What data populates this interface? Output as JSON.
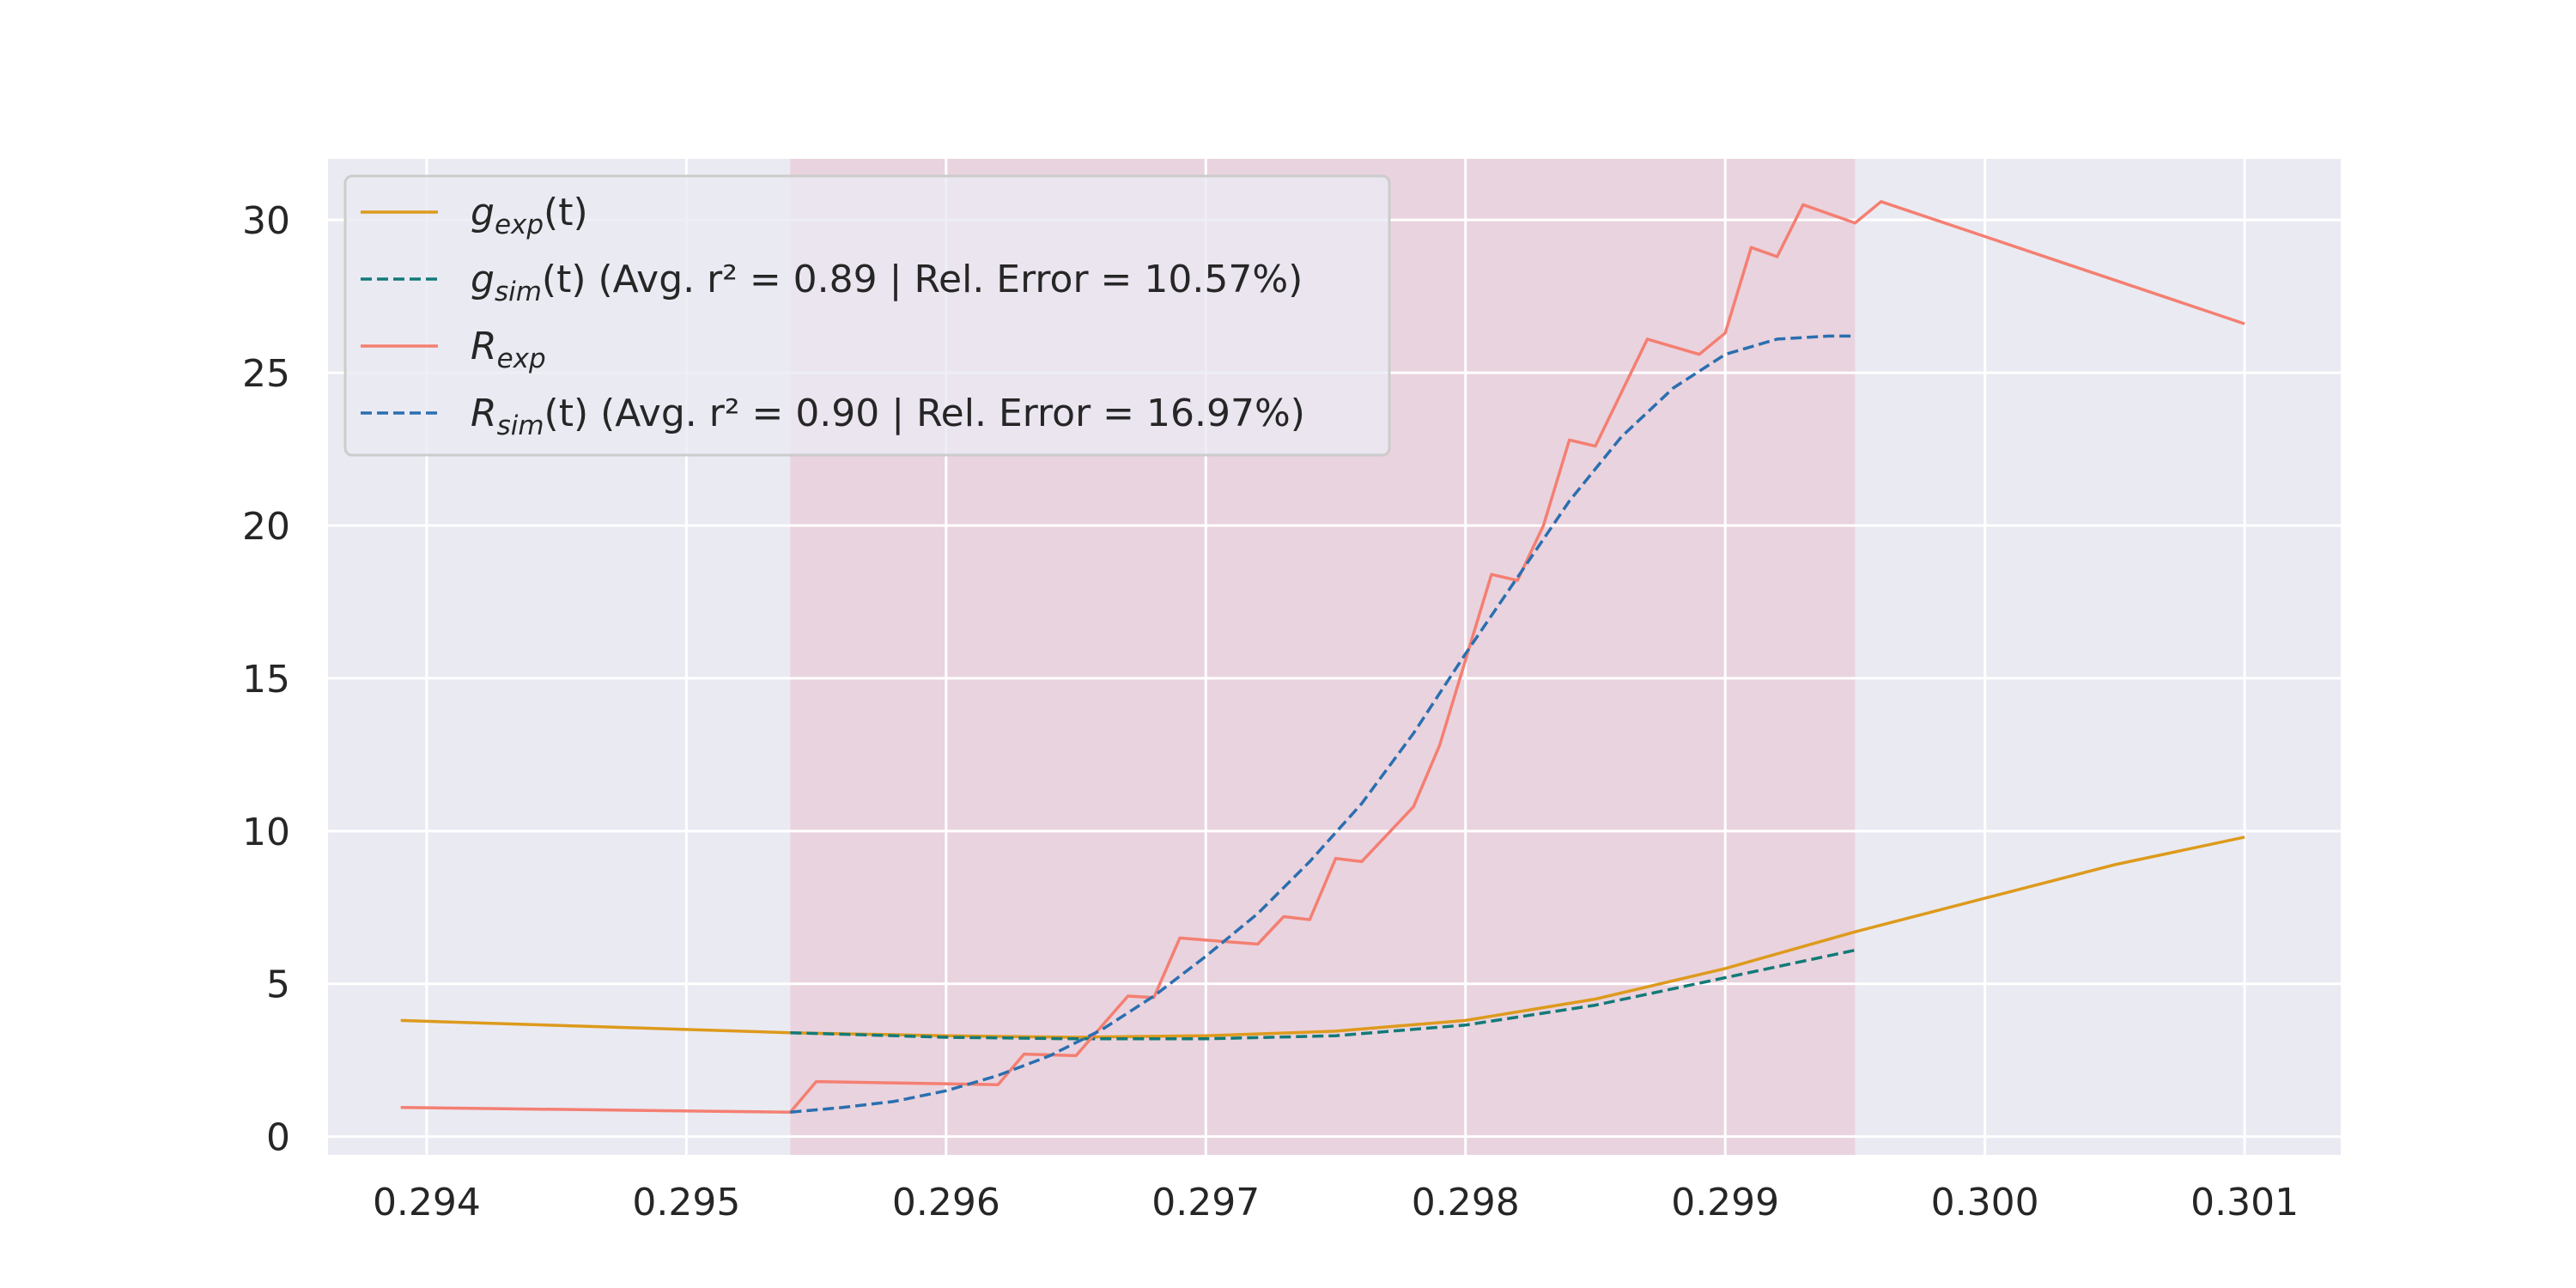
{
  "chart_data": {
    "type": "line",
    "title": "",
    "xlabel": "",
    "ylabel": "",
    "xlim": [
      0.29362,
      0.30137
    ],
    "ylim": [
      -0.6,
      32
    ],
    "grid": true,
    "background": "#eaeaf2",
    "legend_position": "top-left",
    "x_ticks": [
      0.294,
      0.295,
      0.296,
      0.297,
      0.298,
      0.299,
      0.3,
      0.301
    ],
    "x_tick_labels": [
      "0.294",
      "0.295",
      "0.296",
      "0.297",
      "0.298",
      "0.299",
      "0.300",
      "0.301"
    ],
    "y_ticks": [
      0,
      5,
      10,
      15,
      20,
      25,
      30
    ],
    "y_tick_labels": [
      "0",
      "5",
      "10",
      "15",
      "20",
      "25",
      "30"
    ],
    "shaded_region": {
      "x_start": 0.2954,
      "x_end": 0.2995,
      "color": "#e8a0b0"
    },
    "series": [
      {
        "legend_base": "g",
        "legend_sub": "exp",
        "legend_suffix": "(t)",
        "legend_detail": "",
        "color": "#dd9a1c",
        "dash": "solid",
        "x": [
          0.2939,
          0.2954,
          0.296,
          0.2965,
          0.297,
          0.2975,
          0.298,
          0.2985,
          0.299,
          0.2995,
          0.3,
          0.3005,
          0.301
        ],
        "y": [
          3.8,
          3.4,
          3.3,
          3.25,
          3.3,
          3.45,
          3.8,
          4.5,
          5.5,
          6.7,
          7.8,
          8.9,
          9.8
        ]
      },
      {
        "legend_base": "g",
        "legend_sub": "sim",
        "legend_suffix": "(t)",
        "legend_detail": " (Avg. r² = 0.89 | Rel. Error =  10.57%)",
        "color": "#127a78",
        "dash": "dashed",
        "x": [
          0.2954,
          0.296,
          0.2965,
          0.297,
          0.2975,
          0.298,
          0.2985,
          0.299,
          0.2995
        ],
        "y": [
          3.4,
          3.25,
          3.2,
          3.2,
          3.3,
          3.65,
          4.3,
          5.2,
          6.1
        ]
      },
      {
        "legend_base": "R",
        "legend_sub": "exp",
        "legend_suffix": "",
        "legend_detail": "",
        "color": "#f47f72",
        "dash": "solid",
        "x": [
          0.2939,
          0.2954,
          0.2955,
          0.2962,
          0.2963,
          0.2965,
          0.2967,
          0.2968,
          0.2969,
          0.2972,
          0.2973,
          0.2974,
          0.2975,
          0.2976,
          0.2978,
          0.2979,
          0.2981,
          0.2982,
          0.2983,
          0.2984,
          0.2985,
          0.2987,
          0.2989,
          0.299,
          0.2991,
          0.2992,
          0.2993,
          0.2995,
          0.2996,
          0.301
        ],
        "y": [
          0.95,
          0.8,
          1.8,
          1.7,
          2.7,
          2.65,
          4.6,
          4.55,
          6.5,
          6.3,
          7.2,
          7.1,
          9.1,
          9.0,
          10.8,
          12.8,
          18.4,
          18.2,
          20.0,
          22.8,
          22.6,
          26.1,
          25.6,
          26.3,
          29.1,
          28.8,
          30.5,
          29.9,
          30.6,
          26.6
        ]
      },
      {
        "legend_base": "R",
        "legend_sub": "sim",
        "legend_suffix": "(t)",
        "legend_detail": " (Avg. r² = 0.90 | Rel. Error =  16.97%)",
        "color": "#2a6fb0",
        "dash": "dashed",
        "x": [
          0.2954,
          0.2956,
          0.2958,
          0.296,
          0.2962,
          0.2964,
          0.2966,
          0.2968,
          0.297,
          0.2972,
          0.2974,
          0.2976,
          0.2978,
          0.298,
          0.2982,
          0.2984,
          0.2986,
          0.2988,
          0.299,
          0.2992,
          0.2994,
          0.2995
        ],
        "y": [
          0.8,
          0.95,
          1.15,
          1.5,
          2.0,
          2.65,
          3.5,
          4.6,
          5.9,
          7.3,
          9.0,
          10.9,
          13.2,
          15.8,
          18.3,
          20.8,
          22.9,
          24.5,
          25.6,
          26.1,
          26.2,
          26.2
        ]
      }
    ]
  }
}
